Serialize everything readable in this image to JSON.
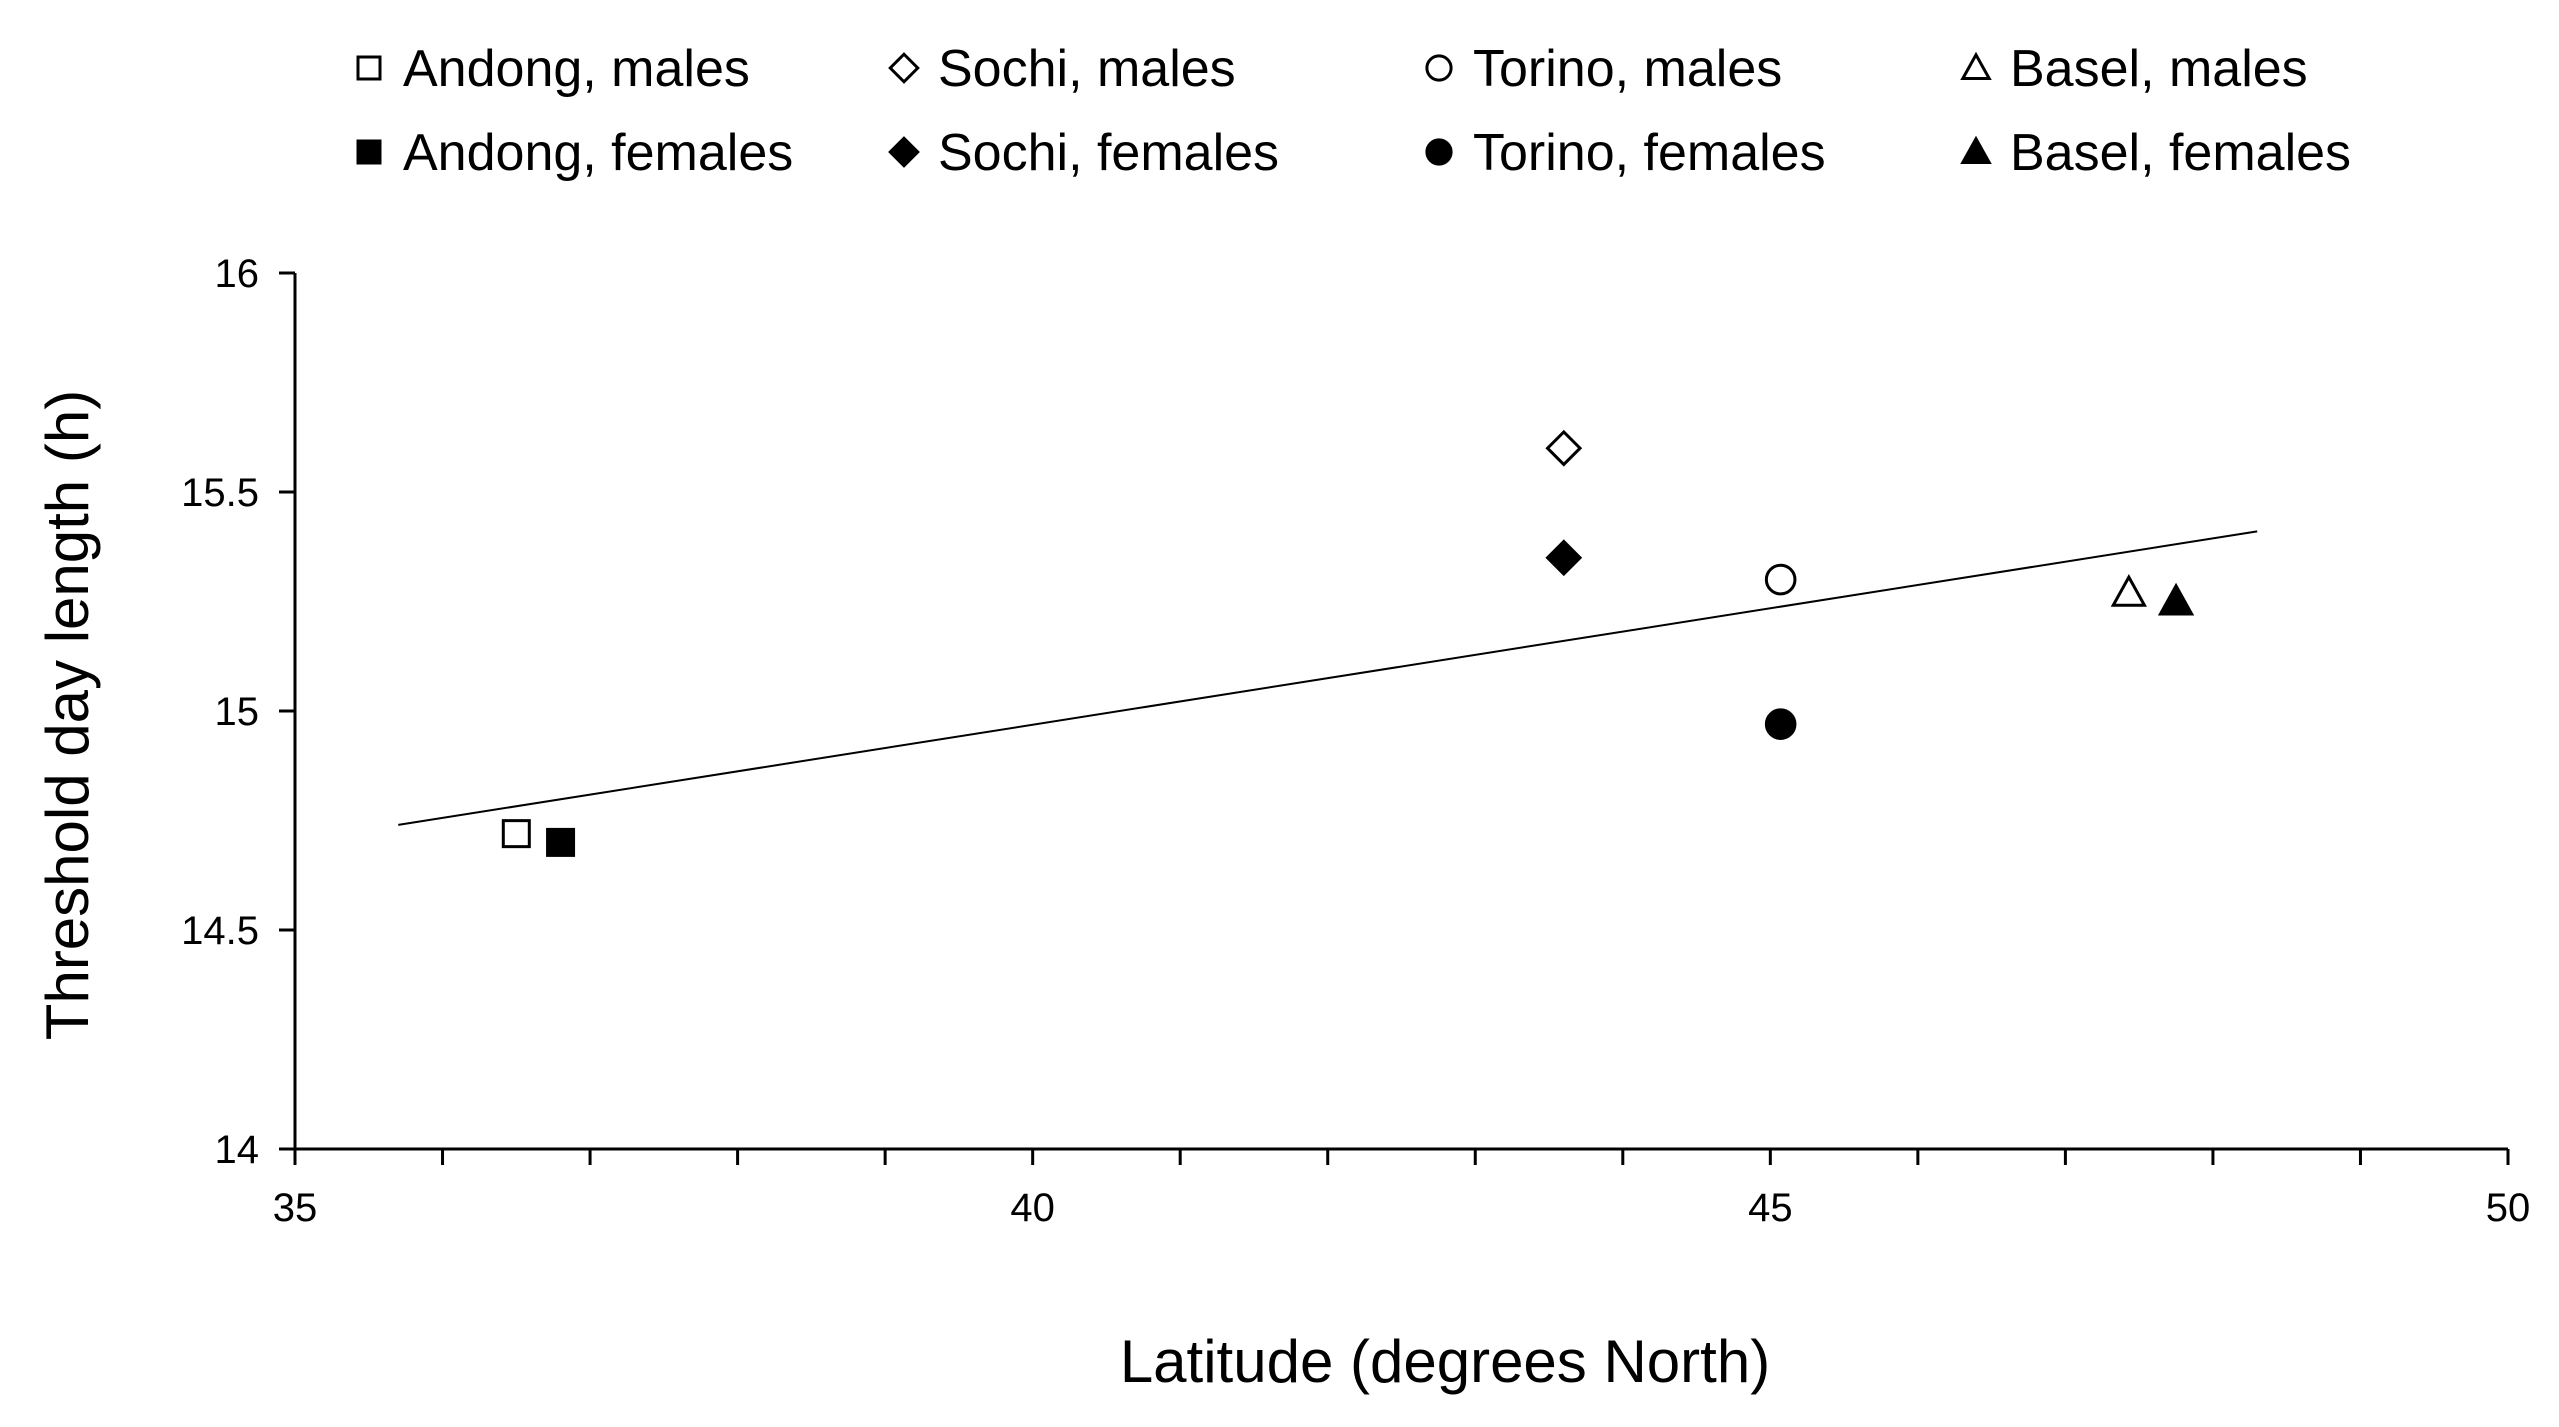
{
  "chart_data": {
    "type": "scatter",
    "title": "",
    "xlabel": "Latitude (degrees North)",
    "ylabel": "Threshold day length (h)",
    "xlim": [
      35,
      50
    ],
    "ylim": [
      14,
      16
    ],
    "x_ticks": [
      35,
      40,
      45,
      50
    ],
    "x_tick_labels": [
      "35",
      "40",
      "45",
      "50"
    ],
    "x_minor_step": 1,
    "y_ticks": [
      14,
      14.5,
      15,
      15.5,
      16
    ],
    "y_tick_labels": [
      "14",
      "14.5",
      "15",
      "15.5",
      "16"
    ],
    "grid": false,
    "legend_position": "top",
    "series": [
      {
        "name": "Andong, males",
        "marker": "square",
        "filled": false,
        "x": [
          36.5
        ],
        "y": [
          14.72
        ]
      },
      {
        "name": "Andong, females",
        "marker": "square",
        "filled": true,
        "x": [
          36.8
        ],
        "y": [
          14.7
        ]
      },
      {
        "name": "Sochi, males",
        "marker": "diamond",
        "filled": false,
        "x": [
          43.6
        ],
        "y": [
          15.6
        ]
      },
      {
        "name": "Sochi, females",
        "marker": "diamond",
        "filled": true,
        "x": [
          43.6
        ],
        "y": [
          15.35
        ]
      },
      {
        "name": "Torino, males",
        "marker": "circle",
        "filled": false,
        "x": [
          45.07
        ],
        "y": [
          15.3
        ]
      },
      {
        "name": "Torino, females",
        "marker": "circle",
        "filled": true,
        "x": [
          45.07
        ],
        "y": [
          14.97
        ]
      },
      {
        "name": "Basel, males",
        "marker": "triangle",
        "filled": false,
        "x": [
          47.43
        ],
        "y": [
          15.27
        ]
      },
      {
        "name": "Basel, females",
        "marker": "triangle",
        "filled": true,
        "x": [
          47.75
        ],
        "y": [
          15.25
        ]
      }
    ],
    "trendline": {
      "x": [
        35.7,
        48.3
      ],
      "y": [
        14.74,
        15.41
      ]
    }
  }
}
